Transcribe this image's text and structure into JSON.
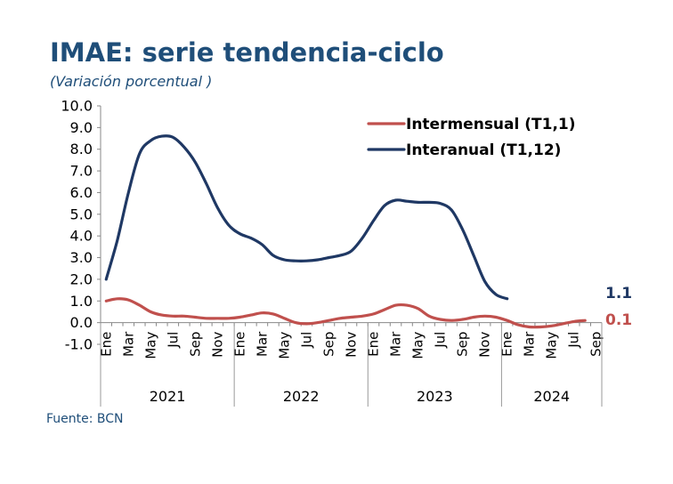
{
  "title": "IMAE: serie tendencia-ciclo",
  "subtitle": "(Variación porcentual )",
  "source": "Fuente: BCN",
  "chart_data": {
    "type": "line",
    "ylim": [
      -1.0,
      10.0
    ],
    "yticks": [
      "-1.0",
      "0.0",
      "1.0",
      "2.0",
      "3.0",
      "4.0",
      "5.0",
      "6.0",
      "7.0",
      "8.0",
      "9.0",
      "10.0"
    ],
    "month_labels": [
      "Ene",
      "Mar",
      "May",
      "Jul",
      "Sep",
      "Nov"
    ],
    "last_year_month_labels": [
      "Ene",
      "Mar",
      "May",
      "Jul",
      "Sep"
    ],
    "years": [
      "2021",
      "2022",
      "2023",
      "2024"
    ],
    "months_per_year": 12,
    "total_months": 45,
    "legend_position": "top-right",
    "series": [
      {
        "name": "Intermensual (T1,1)",
        "color": "#C0504D",
        "end_label": "0.1",
        "values": [
          1.0,
          1.1,
          1.05,
          0.8,
          0.5,
          0.35,
          0.3,
          0.3,
          0.25,
          0.2,
          0.2,
          0.2,
          0.25,
          0.35,
          0.45,
          0.4,
          0.2,
          0.0,
          -0.05,
          0.0,
          0.1,
          0.2,
          0.25,
          0.3,
          0.4,
          0.6,
          0.8,
          0.8,
          0.65,
          0.3,
          0.15,
          0.1,
          0.15,
          0.25,
          0.3,
          0.25,
          0.1,
          -0.1,
          -0.2,
          -0.2,
          -0.15,
          -0.05,
          0.05,
          0.1
        ]
      },
      {
        "name": "Interanual (T1,12)",
        "color": "#1F3864",
        "end_label": "1.1",
        "values": [
          2.0,
          3.8,
          6.0,
          7.8,
          8.4,
          8.6,
          8.55,
          8.1,
          7.4,
          6.4,
          5.3,
          4.5,
          4.1,
          3.9,
          3.6,
          3.1,
          2.9,
          2.85,
          2.85,
          2.9,
          3.0,
          3.1,
          3.3,
          3.9,
          4.7,
          5.4,
          5.65,
          5.6,
          5.55,
          5.55,
          5.5,
          5.2,
          4.3,
          3.1,
          1.9,
          1.3,
          1.1
        ]
      }
    ]
  }
}
